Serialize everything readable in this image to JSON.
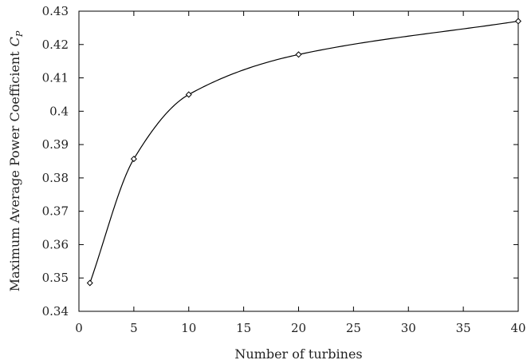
{
  "chart_data": {
    "type": "line",
    "xlabel": "Number of turbines",
    "ylabel": "Maximum Average Power Coefficient",
    "ylabel_symbol": "C",
    "ylabel_subscript": "P",
    "xlim": [
      0,
      40
    ],
    "ylim": [
      0.34,
      0.43
    ],
    "x_ticks": [
      0,
      5,
      10,
      15,
      20,
      25,
      30,
      35,
      40
    ],
    "y_ticks": [
      0.34,
      0.35,
      0.36,
      0.37,
      0.38,
      0.39,
      0.4,
      0.41,
      0.42,
      0.43
    ],
    "grid": false,
    "marker": "diamond",
    "series": [
      {
        "x": [
          1,
          5,
          10,
          20,
          40
        ],
        "y": [
          0.3485,
          0.3857,
          0.405,
          0.417,
          0.427
        ]
      }
    ]
  }
}
